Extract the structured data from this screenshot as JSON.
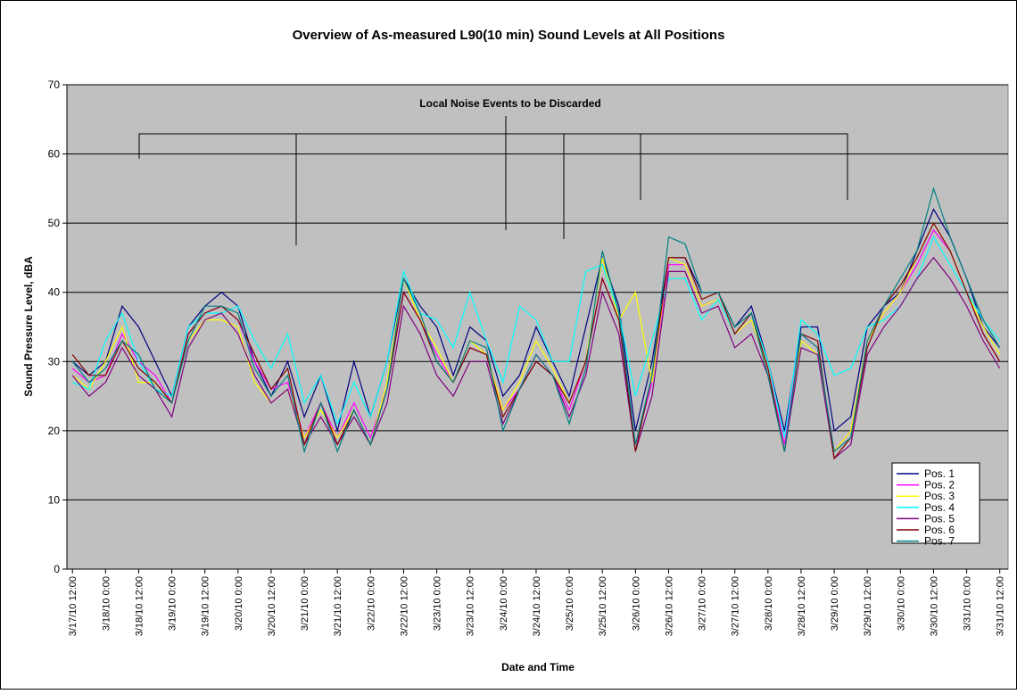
{
  "chart_data": {
    "type": "line",
    "title": "Overview of As-measured L90(10 min) Sound Levels at All Positions",
    "xlabel": "Date and Time",
    "ylabel": "Sound Pressure Level, dBA",
    "annotation": "Local Noise Events to be Discarded",
    "ylim": [
      0,
      70
    ],
    "yticks": [
      0,
      10,
      20,
      30,
      40,
      50,
      60,
      70
    ],
    "grid": true,
    "xlim": [
      "3/17/10 10:00",
      "3/31/10 15:00"
    ],
    "xticks": [
      "3/17/10 12:00",
      "3/18/10 0:00",
      "3/18/10 12:00",
      "3/19/10 0:00",
      "3/19/10 12:00",
      "3/20/10 0:00",
      "3/20/10 12:00",
      "3/21/10 0:00",
      "3/21/10 12:00",
      "3/22/10 0:00",
      "3/22/10 12:00",
      "3/23/10 0:00",
      "3/23/10 12:00",
      "3/24/10 0:00",
      "3/24/10 12:00",
      "3/25/10 0:00",
      "3/25/10 12:00",
      "3/26/10 0:00",
      "3/26/10 12:00",
      "3/27/10 0:00",
      "3/27/10 12:00",
      "3/28/10 0:00",
      "3/28/10 12:00",
      "3/29/10 0:00",
      "3/29/10 12:00",
      "3/30/10 0:00",
      "3/30/10 12:00",
      "3/31/10 0:00",
      "3/31/10 12:00"
    ],
    "x": [
      "3/17/10 12:00",
      "3/17/10 18:00",
      "3/18/10 0:00",
      "3/18/10 6:00",
      "3/18/10 12:00",
      "3/18/10 18:00",
      "3/19/10 0:00",
      "3/19/10 6:00",
      "3/19/10 12:00",
      "3/19/10 18:00",
      "3/20/10 0:00",
      "3/20/10 6:00",
      "3/20/10 12:00",
      "3/20/10 18:00",
      "3/21/10 0:00",
      "3/21/10 6:00",
      "3/21/10 12:00",
      "3/21/10 18:00",
      "3/22/10 0:00",
      "3/22/10 6:00",
      "3/22/10 12:00",
      "3/22/10 18:00",
      "3/23/10 0:00",
      "3/23/10 6:00",
      "3/23/10 12:00",
      "3/23/10 18:00",
      "3/24/10 0:00",
      "3/24/10 6:00",
      "3/24/10 12:00",
      "3/24/10 18:00",
      "3/25/10 0:00",
      "3/25/10 6:00",
      "3/25/10 12:00",
      "3/25/10 18:00",
      "3/26/10 0:00",
      "3/26/10 6:00",
      "3/26/10 12:00",
      "3/26/10 18:00",
      "3/27/10 0:00",
      "3/27/10 6:00",
      "3/27/10 12:00",
      "3/27/10 18:00",
      "3/28/10 0:00",
      "3/28/10 6:00",
      "3/28/10 12:00",
      "3/28/10 18:00",
      "3/29/10 0:00",
      "3/29/10 6:00",
      "3/29/10 12:00",
      "3/29/10 18:00",
      "3/30/10 0:00",
      "3/30/10 6:00",
      "3/30/10 12:00",
      "3/30/10 18:00",
      "3/31/10 0:00",
      "3/31/10 6:00",
      "3/31/10 12:00"
    ],
    "series": [
      {
        "name": "Pos. 1",
        "color": "#000080",
        "values": [
          30,
          28,
          30,
          38,
          35,
          30,
          25,
          35,
          38,
          40,
          38,
          30,
          25,
          30,
          22,
          28,
          20,
          30,
          22,
          30,
          42,
          38,
          35,
          28,
          35,
          33,
          25,
          28,
          35,
          30,
          25,
          35,
          45,
          38,
          20,
          30,
          45,
          45,
          40,
          40,
          35,
          38,
          30,
          20,
          35,
          35,
          20,
          22,
          35,
          38,
          40,
          46,
          52,
          48,
          42,
          35,
          32
        ]
      },
      {
        "name": "Pos. 2",
        "color": "#ff00ff",
        "values": [
          29,
          27,
          28,
          34,
          30,
          28,
          24,
          34,
          37,
          38,
          36,
          30,
          26,
          27,
          19,
          24,
          19,
          24,
          19,
          26,
          40,
          36,
          31,
          27,
          32,
          31,
          23,
          26,
          31,
          28,
          23,
          30,
          42,
          36,
          18,
          27,
          44,
          44,
          38,
          39,
          34,
          36,
          29,
          18,
          34,
          32,
          17,
          20,
          33,
          37,
          40,
          44,
          49,
          46,
          40,
          34,
          30
        ]
      },
      {
        "name": "Pos. 3",
        "color": "#ffff00",
        "values": [
          28,
          26,
          30,
          35,
          27,
          27,
          24,
          33,
          36,
          36,
          35,
          27,
          24,
          26,
          19,
          23,
          19,
          23,
          18,
          27,
          42,
          36,
          32,
          27,
          33,
          31,
          23,
          27,
          33,
          29,
          24,
          30,
          45,
          36,
          40,
          27,
          45,
          44,
          38,
          39,
          34,
          36,
          29,
          17,
          33,
          31,
          17,
          20,
          33,
          37,
          40,
          45,
          50,
          46,
          40,
          35,
          31
        ]
      },
      {
        "name": "Pos. 4",
        "color": "#00ffff",
        "values": [
          27,
          26,
          33,
          37,
          30,
          26,
          25,
          35,
          37,
          37,
          38,
          33,
          29,
          34,
          24,
          28,
          21,
          27,
          22,
          30,
          43,
          37,
          36,
          32,
          40,
          33,
          27,
          38,
          36,
          30,
          30,
          43,
          44,
          37,
          25,
          33,
          42,
          42,
          36,
          39,
          34,
          37,
          30,
          19,
          36,
          34,
          28,
          29,
          35,
          36,
          38,
          42,
          48,
          44,
          40,
          36,
          33
        ]
      },
      {
        "name": "Pos. 5",
        "color": "#800080",
        "values": [
          28,
          25,
          27,
          32,
          28,
          26,
          22,
          32,
          36,
          37,
          34,
          28,
          24,
          26,
          18,
          22,
          18,
          22,
          18,
          24,
          38,
          34,
          28,
          25,
          30,
          30,
          21,
          26,
          30,
          28,
          22,
          28,
          40,
          34,
          17,
          25,
          43,
          43,
          37,
          38,
          32,
          34,
          28,
          17,
          32,
          31,
          16,
          18,
          31,
          35,
          38,
          42,
          45,
          42,
          38,
          33,
          29
        ]
      },
      {
        "name": "Pos. 6",
        "color": "#800000",
        "values": [
          31,
          28,
          28,
          33,
          29,
          27,
          24,
          34,
          37,
          38,
          36,
          31,
          26,
          29,
          18,
          24,
          18,
          23,
          18,
          26,
          40,
          36,
          30,
          27,
          32,
          31,
          22,
          26,
          30,
          28,
          24,
          30,
          42,
          36,
          17,
          28,
          45,
          45,
          39,
          40,
          34,
          37,
          29,
          17,
          34,
          33,
          16,
          19,
          32,
          38,
          41,
          45,
          50,
          46,
          40,
          34,
          30
        ]
      },
      {
        "name": "Pos. 7",
        "color": "#008080",
        "values": [
          30,
          27,
          29,
          33,
          31,
          26,
          24,
          33,
          38,
          38,
          37,
          29,
          25,
          28,
          17,
          24,
          17,
          23,
          18,
          26,
          42,
          37,
          30,
          27,
          33,
          32,
          20,
          26,
          31,
          28,
          21,
          29,
          46,
          37,
          18,
          28,
          48,
          47,
          40,
          40,
          35,
          37,
          28,
          17,
          34,
          32,
          17,
          19,
          33,
          38,
          42,
          46,
          55,
          48,
          42,
          36,
          32
        ]
      }
    ]
  }
}
